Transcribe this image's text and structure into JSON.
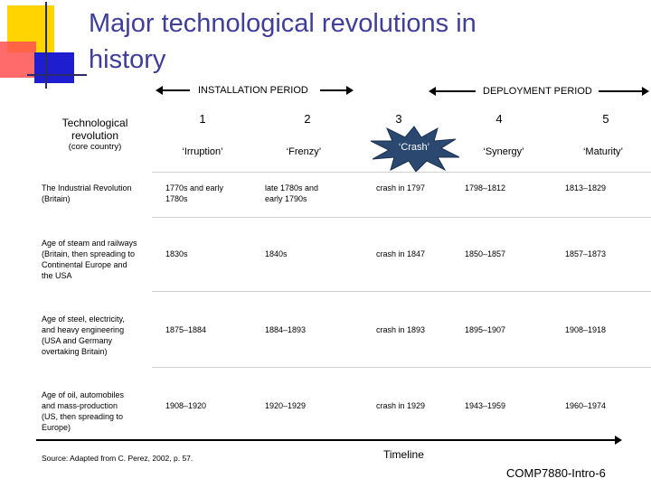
{
  "slide": {
    "title_line1": "Major technological revolutions in",
    "title_line2": "history"
  },
  "periods": {
    "installation": "INSTALLATION PERIOD",
    "deployment": "DEPLOYMENT PERIOD"
  },
  "header": {
    "tech_line1": "Technological",
    "tech_line2": "revolution",
    "core": "(core country)"
  },
  "phases": [
    {
      "num": "1",
      "name": "‘Irruption’"
    },
    {
      "num": "2",
      "name": "‘Frenzy’"
    },
    {
      "num": "3",
      "name": "‘Crash’"
    },
    {
      "num": "4",
      "name": "‘Synergy’"
    },
    {
      "num": "5",
      "name": "‘Maturity’"
    }
  ],
  "rows": [
    {
      "label": [
        "The Industrial Revolution",
        "(Britain)"
      ],
      "cells": [
        [
          "1770s and early",
          "1780s"
        ],
        [
          "late 1780s and",
          "early 1790s"
        ],
        [
          "crash in 1797"
        ],
        [
          "1798–1812"
        ],
        [
          "1813–1829"
        ]
      ]
    },
    {
      "label": [
        "Age of steam and railways",
        "(Britain, then spreading to",
        "Continental Europe and",
        "the USA"
      ],
      "cells": [
        [
          "1830s"
        ],
        [
          "1840s"
        ],
        [
          "crash in 1847"
        ],
        [
          "1850–1857"
        ],
        [
          "1857–1873"
        ]
      ]
    },
    {
      "label": [
        "Age of steel, electricity,",
        "and heavy engineering",
        "(USA and Germany",
        "overtaking Britain)"
      ],
      "cells": [
        [
          "1875–1884"
        ],
        [
          "1884–1893"
        ],
        [
          "crash in 1893"
        ],
        [
          "1895–1907"
        ],
        [
          "1908–1918"
        ]
      ]
    },
    {
      "label": [
        "Age of oil, automobiles",
        "and mass-production",
        "(US, then spreading to",
        "Europe)"
      ],
      "cells": [
        [
          "1908–1920"
        ],
        [
          "1920–1929"
        ],
        [
          "crash in 1929"
        ],
        [
          "1943–1959"
        ],
        [
          "1960–1974"
        ]
      ]
    }
  ],
  "source": "Source: Adapted from C. Perez, 2002, p. 57.",
  "timeline_label": "Timeline",
  "footer": "COMP7880-Intro-6",
  "colors": {
    "title": "#3f3f9a",
    "crash_star": "#2a4870",
    "accent_yellow": "#ffd400",
    "accent_red": "#ff5050",
    "accent_blue": "#1e1ed0"
  }
}
